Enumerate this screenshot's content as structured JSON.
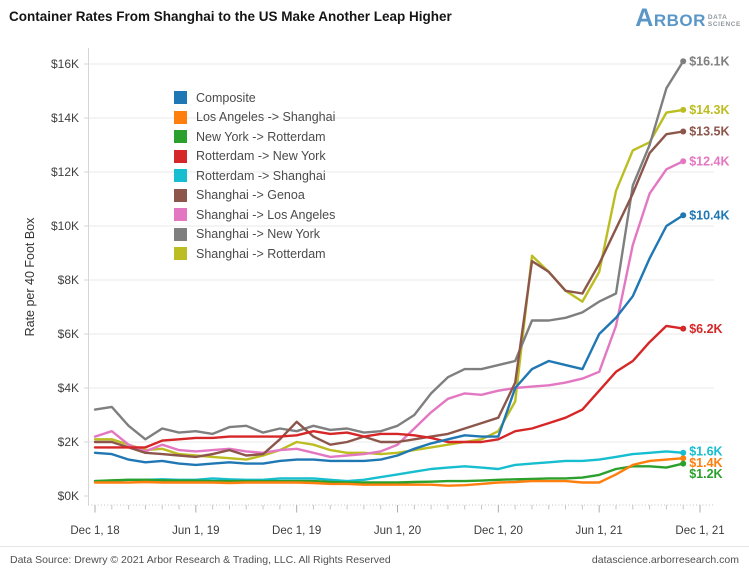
{
  "header": {
    "logo": {
      "brand": "ARBOR",
      "tagline_line1": "DATA",
      "tagline_line2": "SCIENCE"
    }
  },
  "footer": {
    "source_text": "Data Source: Drewry © 2021 Arbor Research & Trading, LLC. All Rights Reserved",
    "website": "datascience.arborresearch.com"
  },
  "chart_data": {
    "type": "line",
    "title": "Container Rates From Shanghai to the US Make Another Leap Higher",
    "ylabel": "Rate per 40 Foot Box",
    "units": "USD thousands per 40-foot box",
    "ylim": [
      0,
      16
    ],
    "y_tick_labels": [
      "$0K",
      "$2K",
      "$4K",
      "$6K",
      "$8K",
      "$10K",
      "$12K",
      "$14K",
      "$16K"
    ],
    "x_tick_labels": [
      "Dec 1, 18",
      "Jun 1, 19",
      "Dec 1, 19",
      "Jun 1, 20",
      "Dec 1, 20",
      "Jun 1, 21",
      "Dec 1, 21"
    ],
    "x_start": "Dec 2018",
    "x_interval": "monthly",
    "grid": "horizontal",
    "legend_position": "upper-left-inside",
    "series": [
      {
        "name": "Composite",
        "color": "#1f77b4",
        "end_label": "$10.4K",
        "values": [
          1.6,
          1.55,
          1.35,
          1.25,
          1.3,
          1.2,
          1.15,
          1.2,
          1.25,
          1.2,
          1.2,
          1.3,
          1.35,
          1.35,
          1.3,
          1.3,
          1.3,
          1.35,
          1.5,
          1.75,
          1.95,
          2.1,
          2.25,
          2.2,
          2.2,
          4.0,
          4.7,
          5.0,
          4.85,
          4.7,
          6.0,
          6.6,
          7.4,
          8.8,
          10.0,
          10.4
        ]
      },
      {
        "name": "Los Angeles -> Shanghai",
        "color": "#ff7f0e",
        "end_label": "$1.4K",
        "values": [
          0.5,
          0.5,
          0.5,
          0.52,
          0.5,
          0.5,
          0.5,
          0.5,
          0.48,
          0.5,
          0.5,
          0.5,
          0.5,
          0.48,
          0.45,
          0.45,
          0.42,
          0.42,
          0.42,
          0.42,
          0.42,
          0.38,
          0.4,
          0.45,
          0.5,
          0.52,
          0.55,
          0.55,
          0.55,
          0.5,
          0.5,
          0.8,
          1.15,
          1.3,
          1.35,
          1.4
        ]
      },
      {
        "name": "New York -> Rotterdam",
        "color": "#2ca02c",
        "end_label": "$1.2K",
        "values": [
          0.55,
          0.58,
          0.6,
          0.6,
          0.58,
          0.57,
          0.57,
          0.55,
          0.55,
          0.55,
          0.55,
          0.55,
          0.55,
          0.55,
          0.52,
          0.5,
          0.5,
          0.5,
          0.5,
          0.52,
          0.53,
          0.55,
          0.55,
          0.57,
          0.6,
          0.62,
          0.63,
          0.65,
          0.65,
          0.68,
          0.78,
          1.0,
          1.1,
          1.1,
          1.05,
          1.2
        ]
      },
      {
        "name": "Rotterdam -> New York",
        "color": "#d62728",
        "end_label": "$6.2K",
        "values": [
          1.8,
          1.8,
          1.8,
          1.8,
          2.05,
          2.1,
          2.15,
          2.15,
          2.2,
          2.2,
          2.2,
          2.2,
          2.25,
          2.4,
          2.3,
          2.35,
          2.2,
          2.3,
          2.3,
          2.25,
          2.15,
          2.0,
          2.0,
          2.0,
          2.1,
          2.4,
          2.5,
          2.7,
          2.9,
          3.2,
          3.9,
          4.6,
          5.0,
          5.7,
          6.3,
          6.2
        ]
      },
      {
        "name": "Rotterdam -> Shanghai",
        "color": "#17becf",
        "end_label": "$1.6K",
        "values": [
          0.55,
          0.55,
          0.6,
          0.6,
          0.62,
          0.6,
          0.6,
          0.65,
          0.62,
          0.6,
          0.6,
          0.65,
          0.65,
          0.65,
          0.6,
          0.55,
          0.6,
          0.7,
          0.8,
          0.9,
          1.0,
          1.05,
          1.1,
          1.05,
          1.0,
          1.15,
          1.2,
          1.25,
          1.3,
          1.3,
          1.35,
          1.45,
          1.55,
          1.6,
          1.65,
          1.6
        ]
      },
      {
        "name": "Shanghai -> Genoa",
        "color": "#8c564b",
        "end_label": "$13.5K",
        "values": [
          2.0,
          2.0,
          1.8,
          1.6,
          1.55,
          1.5,
          1.45,
          1.55,
          1.7,
          1.5,
          1.55,
          2.1,
          2.75,
          2.2,
          1.9,
          2.0,
          2.2,
          2.0,
          2.0,
          2.1,
          2.2,
          2.3,
          2.5,
          2.7,
          2.9,
          4.2,
          8.7,
          8.3,
          7.6,
          7.5,
          8.6,
          9.9,
          11.2,
          12.7,
          13.4,
          13.5
        ]
      },
      {
        "name": "Shanghai -> Los Angeles",
        "color": "#e377c2",
        "end_label": "$12.4K",
        "values": [
          2.2,
          2.4,
          1.9,
          1.65,
          1.9,
          1.7,
          1.65,
          1.7,
          1.75,
          1.65,
          1.6,
          1.7,
          1.75,
          1.6,
          1.45,
          1.5,
          1.55,
          1.65,
          1.9,
          2.5,
          3.1,
          3.6,
          3.8,
          3.75,
          3.9,
          4.0,
          4.05,
          4.1,
          4.2,
          4.35,
          4.6,
          6.3,
          9.3,
          11.2,
          12.1,
          12.4
        ]
      },
      {
        "name": "Shanghai -> New York",
        "color": "#7f7f7f",
        "end_label": "$16.1K",
        "values": [
          3.2,
          3.3,
          2.6,
          2.1,
          2.5,
          2.35,
          2.4,
          2.3,
          2.55,
          2.6,
          2.35,
          2.5,
          2.4,
          2.6,
          2.45,
          2.5,
          2.35,
          2.4,
          2.6,
          3.0,
          3.8,
          4.4,
          4.7,
          4.7,
          4.85,
          5.0,
          6.5,
          6.5,
          6.6,
          6.8,
          7.2,
          7.5,
          11.5,
          13.0,
          15.1,
          16.1
        ]
      },
      {
        "name": "Shanghai -> Rotterdam",
        "color": "#bcbd22",
        "end_label": "$14.3K",
        "values": [
          2.1,
          2.1,
          1.9,
          1.7,
          1.75,
          1.55,
          1.5,
          1.45,
          1.4,
          1.35,
          1.5,
          1.7,
          2.0,
          1.9,
          1.7,
          1.6,
          1.6,
          1.55,
          1.6,
          1.7,
          1.8,
          1.9,
          2.0,
          2.1,
          2.4,
          3.5,
          8.9,
          8.3,
          7.6,
          7.2,
          8.3,
          11.3,
          12.8,
          13.1,
          14.2,
          14.3
        ]
      }
    ]
  }
}
